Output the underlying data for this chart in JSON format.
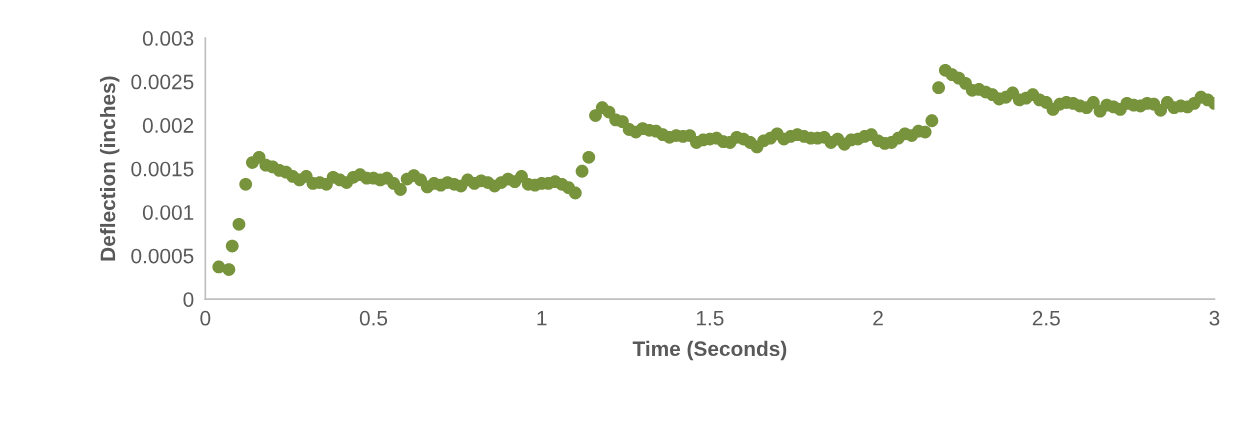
{
  "chart_data": {
    "type": "scatter",
    "xlabel": "Time (Seconds)",
    "ylabel": "Deflection (inches)",
    "x": [
      0.04,
      0.07,
      0.08,
      0.1,
      0.12,
      0.14,
      0.16,
      0.18,
      0.2,
      0.22,
      0.24,
      0.26,
      0.28,
      0.3,
      0.32,
      0.34,
      0.36,
      0.38,
      0.4,
      0.42,
      0.44,
      0.46,
      0.48,
      0.5,
      0.52,
      0.54,
      0.56,
      0.58,
      0.6,
      0.62,
      0.64,
      0.66,
      0.68,
      0.7,
      0.72,
      0.74,
      0.76,
      0.78,
      0.8,
      0.82,
      0.84,
      0.86,
      0.88,
      0.9,
      0.92,
      0.94,
      0.96,
      0.98,
      1.0,
      1.02,
      1.04,
      1.06,
      1.08,
      1.1,
      1.12,
      1.14,
      1.16,
      1.18,
      1.2,
      1.22,
      1.24,
      1.26,
      1.28,
      1.3,
      1.32,
      1.34,
      1.36,
      1.38,
      1.4,
      1.42,
      1.44,
      1.46,
      1.48,
      1.5,
      1.52,
      1.54,
      1.56,
      1.58,
      1.6,
      1.62,
      1.64,
      1.66,
      1.68,
      1.7,
      1.72,
      1.74,
      1.76,
      1.78,
      1.8,
      1.82,
      1.84,
      1.86,
      1.88,
      1.9,
      1.92,
      1.94,
      1.96,
      1.98,
      2.0,
      2.02,
      2.04,
      2.06,
      2.08,
      2.1,
      2.12,
      2.14,
      2.16,
      2.18,
      2.2,
      2.22,
      2.24,
      2.26,
      2.28,
      2.3,
      2.32,
      2.34,
      2.36,
      2.38,
      2.4,
      2.42,
      2.44,
      2.46,
      2.48,
      2.5,
      2.52,
      2.54,
      2.56,
      2.58,
      2.6,
      2.62,
      2.64,
      2.66,
      2.68,
      2.7,
      2.72,
      2.74,
      2.76,
      2.78,
      2.8,
      2.82,
      2.84,
      2.86,
      2.88,
      2.9,
      2.92,
      2.94,
      2.96,
      2.98,
      3.0
    ],
    "series": [
      {
        "color": "#77933c",
        "values": [
          0.00037,
          0.00034,
          0.00061,
          0.00086,
          0.00132,
          0.00157,
          0.00163,
          0.00154,
          0.00152,
          0.00148,
          0.00146,
          0.00141,
          0.00137,
          0.00141,
          0.00133,
          0.00134,
          0.00132,
          0.0014,
          0.00137,
          0.00134,
          0.0014,
          0.00143,
          0.00139,
          0.00139,
          0.00137,
          0.00139,
          0.00133,
          0.00126,
          0.00138,
          0.00142,
          0.00137,
          0.00129,
          0.00133,
          0.00131,
          0.00134,
          0.00132,
          0.0013,
          0.00137,
          0.00133,
          0.00136,
          0.00134,
          0.0013,
          0.00134,
          0.00138,
          0.00135,
          0.00141,
          0.00132,
          0.00131,
          0.00133,
          0.00133,
          0.00135,
          0.00132,
          0.00128,
          0.00122,
          0.00147,
          0.00163,
          0.00211,
          0.0022,
          0.00215,
          0.00206,
          0.00204,
          0.00195,
          0.00192,
          0.00196,
          0.00194,
          0.00193,
          0.00189,
          0.00186,
          0.00188,
          0.00187,
          0.00188,
          0.0018,
          0.00183,
          0.00184,
          0.00185,
          0.00181,
          0.0018,
          0.00186,
          0.00184,
          0.0018,
          0.00175,
          0.00182,
          0.00185,
          0.0019,
          0.00184,
          0.00187,
          0.00189,
          0.00187,
          0.00185,
          0.00185,
          0.00186,
          0.0018,
          0.00184,
          0.00178,
          0.00183,
          0.00184,
          0.00187,
          0.00189,
          0.00182,
          0.00179,
          0.0018,
          0.00185,
          0.0019,
          0.00188,
          0.00193,
          0.00192,
          0.00205,
          0.00243,
          0.00263,
          0.00258,
          0.00254,
          0.00248,
          0.0024,
          0.00241,
          0.00238,
          0.00235,
          0.0023,
          0.00232,
          0.00237,
          0.00229,
          0.00231,
          0.00235,
          0.00229,
          0.00226,
          0.00218,
          0.00224,
          0.00226,
          0.00225,
          0.00222,
          0.0022,
          0.00226,
          0.00216,
          0.00223,
          0.00221,
          0.00218,
          0.00225,
          0.00223,
          0.00222,
          0.00225,
          0.00224,
          0.00217,
          0.00226,
          0.0022,
          0.00222,
          0.00221,
          0.00225,
          0.00232,
          0.00229,
          0.00225
        ]
      }
    ],
    "xlim": [
      0,
      3
    ],
    "xticks": [
      0,
      0.5,
      1,
      1.5,
      2,
      2.5,
      3
    ],
    "ylim": [
      0,
      0.003
    ],
    "yticks": [
      0,
      0.0005,
      0.001,
      0.0015,
      0.002,
      0.0025,
      0.003
    ],
    "marker": "circle",
    "grid": false
  }
}
